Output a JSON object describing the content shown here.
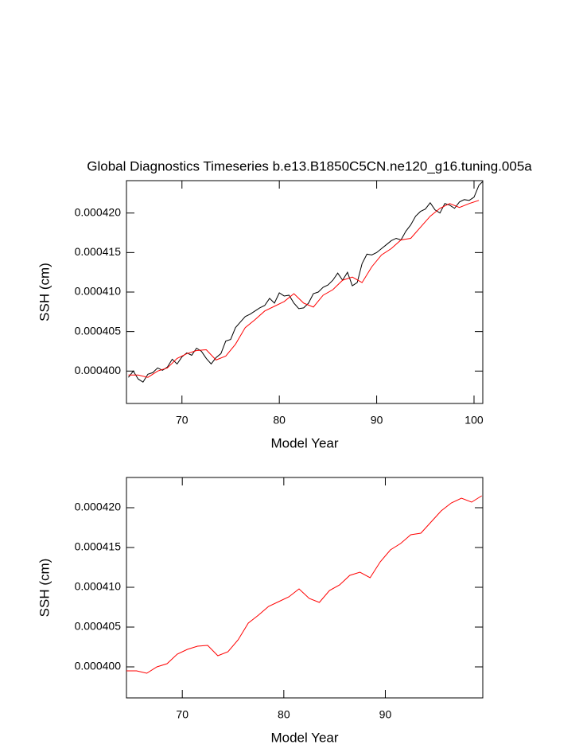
{
  "chart_data": [
    {
      "type": "line",
      "title": "Global Diagnostics Timeseries b.e13.B1850C5CN.ne120_g16.tuning.005a",
      "x_label": "Model Year",
      "y_label": "SSH (cm)",
      "xlim": [
        64.3,
        100.9
      ],
      "xticks": [
        70,
        80,
        90,
        100
      ],
      "ylim": [
        0.0003959,
        0.0004241
      ],
      "yticks": [
        {
          "value": 0.0004,
          "label": "0.000400"
        },
        {
          "value": 0.000405,
          "label": "0.000405"
        },
        {
          "value": 0.00041,
          "label": "0.000410"
        },
        {
          "value": 0.000415,
          "label": "0.000415"
        },
        {
          "value": 0.00042,
          "label": "0.000420"
        }
      ],
      "series": [
        {
          "color": "#000000",
          "x": [
            64.5,
            65,
            65.5,
            66,
            66.5,
            67,
            67.5,
            68,
            68.5,
            69,
            69.5,
            70,
            70.5,
            71,
            71.5,
            72,
            72.5,
            73,
            73.5,
            74,
            74.5,
            75,
            75.5,
            76,
            76.5,
            77,
            77.5,
            78,
            78.5,
            79,
            79.5,
            80,
            80.5,
            81,
            81.5,
            82,
            82.5,
            83,
            83.5,
            84,
            84.5,
            85,
            85.5,
            86,
            86.5,
            87,
            87.5,
            88,
            88.5,
            89,
            89.5,
            90,
            90.5,
            91,
            91.5,
            92,
            92.5,
            93,
            93.5,
            94,
            94.5,
            95,
            95.5,
            96,
            96.5,
            97,
            97.5,
            98,
            98.5,
            99,
            99.5,
            100,
            100.5,
            100.9
          ],
          "values": [
            0.0003992,
            0.0004,
            0.000399,
            0.0003986,
            0.0003996,
            0.0003998,
            0.0004004,
            0.0004001,
            0.0004005,
            0.0004015,
            0.0004009,
            0.0004018,
            0.0004023,
            0.000402,
            0.0004029,
            0.0004025,
            0.0004016,
            0.0004009,
            0.0004017,
            0.0004022,
            0.0004038,
            0.000404,
            0.0004055,
            0.0004062,
            0.0004069,
            0.0004072,
            0.0004076,
            0.000408,
            0.0004083,
            0.0004092,
            0.0004086,
            0.0004099,
            0.0004095,
            0.0004096,
            0.0004086,
            0.0004079,
            0.000408,
            0.0004086,
            0.0004098,
            0.00041,
            0.0004106,
            0.0004109,
            0.0004115,
            0.0004124,
            0.0004115,
            0.0004125,
            0.0004108,
            0.0004112,
            0.0004136,
            0.0004148,
            0.0004147,
            0.000415,
            0.0004155,
            0.000416,
            0.0004165,
            0.0004168,
            0.0004166,
            0.0004177,
            0.0004185,
            0.0004196,
            0.0004202,
            0.0004205,
            0.0004213,
            0.0004204,
            0.00042,
            0.0004212,
            0.000421,
            0.0004206,
            0.0004214,
            0.0004217,
            0.0004216,
            0.000422,
            0.0004235,
            0.000424
          ]
        },
        {
          "color": "#ff0000",
          "x": [
            64.5,
            65.5,
            66.5,
            67.5,
            68.5,
            69.5,
            70.5,
            71.5,
            72.5,
            73.5,
            74.5,
            75.5,
            76.5,
            77.5,
            78.5,
            79.5,
            80.5,
            81.5,
            82.5,
            83.5,
            84.5,
            85.5,
            86.5,
            87.5,
            88.5,
            89.5,
            90.5,
            91.5,
            92.5,
            93.5,
            94.5,
            95.5,
            96.5,
            97.5,
            98.5,
            99.5,
            100.5
          ],
          "values": [
            0.0003995,
            0.0003995,
            0.0003992,
            0.0004,
            0.0004004,
            0.0004016,
            0.0004022,
            0.0004026,
            0.0004027,
            0.0004014,
            0.0004019,
            0.0004034,
            0.0004055,
            0.0004065,
            0.0004076,
            0.0004082,
            0.0004088,
            0.0004098,
            0.0004086,
            0.0004081,
            0.0004096,
            0.0004103,
            0.0004115,
            0.0004119,
            0.0004112,
            0.0004132,
            0.0004147,
            0.0004155,
            0.0004166,
            0.0004168,
            0.0004182,
            0.0004196,
            0.0004206,
            0.0004212,
            0.0004207,
            0.0004212,
            0.0004216
          ]
        }
      ]
    },
    {
      "type": "line",
      "x_label": "Model Year",
      "y_label": "SSH (cm)",
      "xlim": [
        64.5,
        99.6
      ],
      "xticks": [
        70,
        80,
        90
      ],
      "ylim": [
        0.0003961,
        0.0004238
      ],
      "yticks": [
        {
          "value": 0.0004,
          "label": "0.000400"
        },
        {
          "value": 0.000405,
          "label": "0.000405"
        },
        {
          "value": 0.00041,
          "label": "0.000410"
        },
        {
          "value": 0.000415,
          "label": "0.000415"
        },
        {
          "value": 0.00042,
          "label": "0.000420"
        }
      ],
      "series": [
        {
          "color": "#ff0000",
          "x": [
            64.5,
            65.5,
            66.5,
            67.5,
            68.5,
            69.5,
            70.5,
            71.5,
            72.5,
            73.5,
            74.5,
            75.5,
            76.5,
            77.5,
            78.5,
            79.5,
            80.5,
            81.5,
            82.5,
            83.5,
            84.5,
            85.5,
            86.5,
            87.5,
            88.5,
            89.5,
            90.5,
            91.5,
            92.5,
            93.5,
            94.5,
            95.5,
            96.5,
            97.5,
            98.5,
            99.5
          ],
          "values": [
            0.0003995,
            0.0003995,
            0.0003992,
            0.0004,
            0.0004004,
            0.0004016,
            0.0004022,
            0.0004026,
            0.0004027,
            0.0004014,
            0.0004019,
            0.0004034,
            0.0004055,
            0.0004065,
            0.0004076,
            0.0004082,
            0.0004088,
            0.0004098,
            0.0004086,
            0.0004081,
            0.0004096,
            0.0004103,
            0.0004115,
            0.0004119,
            0.0004112,
            0.0004132,
            0.0004147,
            0.0004155,
            0.0004166,
            0.0004168,
            0.0004182,
            0.0004196,
            0.0004206,
            0.0004212,
            0.0004207,
            0.0004215
          ]
        }
      ]
    }
  ]
}
